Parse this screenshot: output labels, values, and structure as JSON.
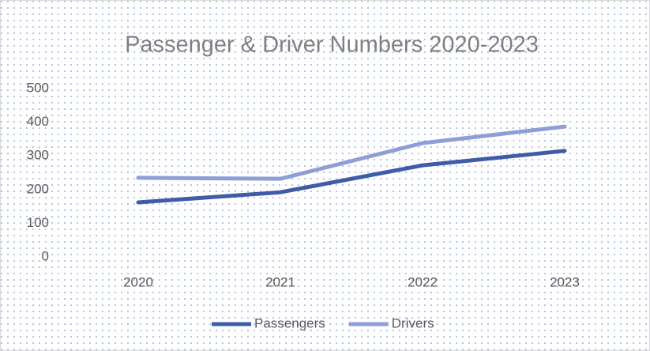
{
  "chart_data": {
    "type": "line",
    "title": "Passenger & Driver Numbers 2020-2023",
    "categories": [
      "2020",
      "2021",
      "2022",
      "2023"
    ],
    "series": [
      {
        "name": "Passengers",
        "color": "#3f5ca9",
        "values": [
          162,
          192,
          272,
          315
        ]
      },
      {
        "name": "Drivers",
        "color": "#8e9fd8",
        "values": [
          235,
          232,
          338,
          387
        ]
      }
    ],
    "ylim": [
      0,
      500
    ],
    "yticks": [
      0,
      100,
      200,
      300,
      400,
      500
    ],
    "grid": false,
    "legend": "bottom"
  }
}
